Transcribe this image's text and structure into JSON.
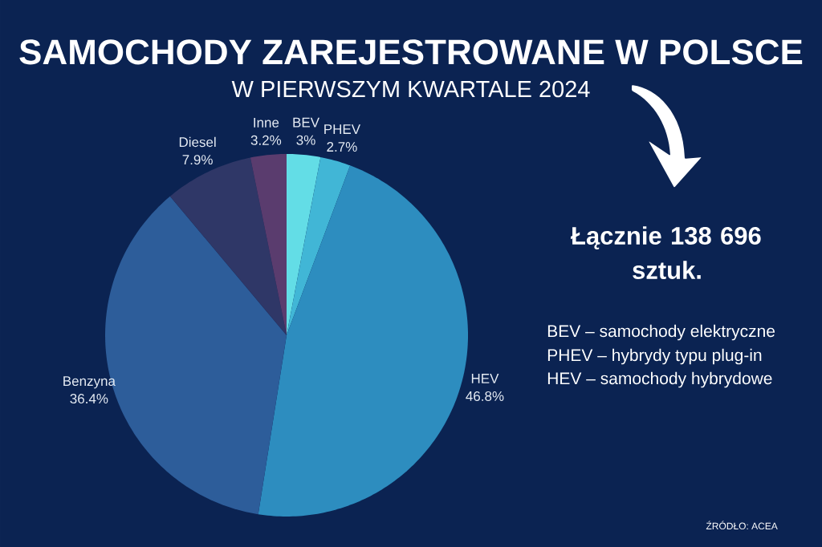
{
  "chart_data": {
    "type": "pie",
    "title": "SAMOCHODY ZAREJESTROWANE W POLSCE",
    "subtitle": "W PIERWSZYM KWARTALE 2024",
    "categories": [
      "BEV",
      "PHEV",
      "HEV",
      "Benzyna",
      "Diesel",
      "Inne"
    ],
    "values": [
      3,
      2.7,
      46.8,
      36.4,
      7.9,
      3.2
    ],
    "value_labels": [
      "3%",
      "2.7%",
      "46.8%",
      "36.4%",
      "7.9%",
      "3.2%"
    ],
    "colors": [
      "#63dde6",
      "#41b6d6",
      "#2d8dbf",
      "#2d5d9a",
      "#2f3767",
      "#5a3c6e"
    ],
    "annotations": [
      "Łącznie 138 696 sztuk.",
      "BEV – samochody elektryczne",
      "PHEV – hybrydy typu plug-in",
      "HEV – samochody hybrydowe",
      "ŹRÓDŁO: ACEA"
    ]
  }
}
